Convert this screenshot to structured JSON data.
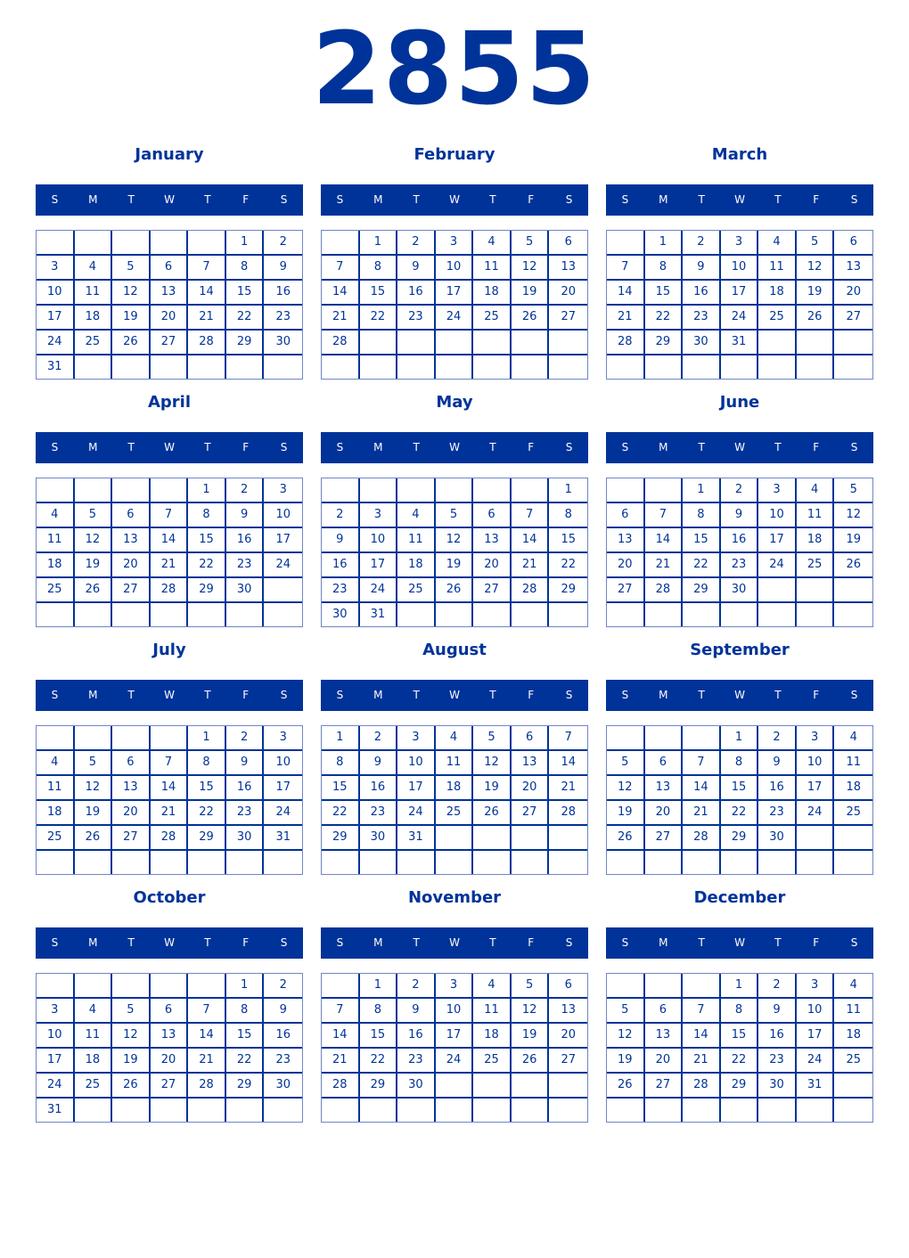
{
  "year": "2855",
  "weekday_labels": [
    "S",
    "M",
    "T",
    "W",
    "T",
    "F",
    "S"
  ],
  "color": "#003399",
  "months": [
    {
      "name": "January",
      "first_weekday": 5,
      "days": 31
    },
    {
      "name": "February",
      "first_weekday": 1,
      "days": 28
    },
    {
      "name": "March",
      "first_weekday": 1,
      "days": 31
    },
    {
      "name": "April",
      "first_weekday": 4,
      "days": 30
    },
    {
      "name": "May",
      "first_weekday": 6,
      "days": 31
    },
    {
      "name": "June",
      "first_weekday": 2,
      "days": 30
    },
    {
      "name": "July",
      "first_weekday": 4,
      "days": 31
    },
    {
      "name": "August",
      "first_weekday": 0,
      "days": 31
    },
    {
      "name": "September",
      "first_weekday": 3,
      "days": 30
    },
    {
      "name": "October",
      "first_weekday": 5,
      "days": 31
    },
    {
      "name": "November",
      "first_weekday": 1,
      "days": 30
    },
    {
      "name": "December",
      "first_weekday": 3,
      "days": 31
    }
  ]
}
